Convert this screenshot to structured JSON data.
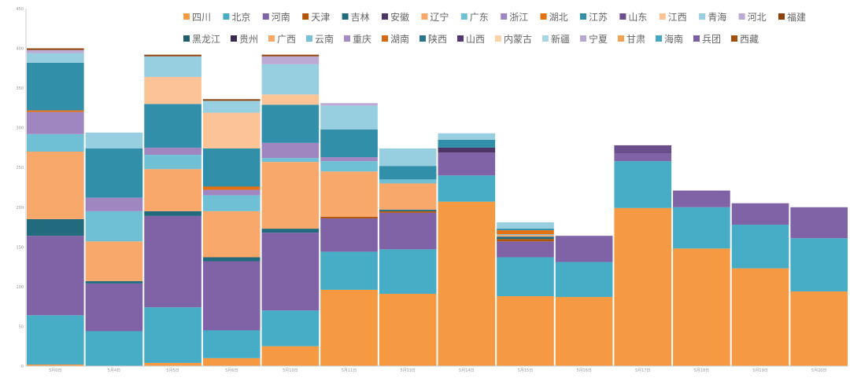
{
  "chart_data": {
    "type": "bar",
    "stacked": true,
    "categories": [
      "5月0日",
      "5月4日",
      "5月5日",
      "5月6日",
      "5月10日",
      "5月11日",
      "5月13日",
      "5月14日",
      "5月15日",
      "5月16日",
      "5月17日",
      "5月18日",
      "5月19日",
      "5月20日"
    ],
    "ylim": [
      0,
      450
    ],
    "yticks": [
      0,
      50,
      100,
      150,
      200,
      250,
      300,
      350,
      400,
      450
    ],
    "grid": false,
    "legend_position": "top-right",
    "series": [
      {
        "name": "四川",
        "color": "#F59A43",
        "values": [
          2,
          0,
          4,
          10,
          25,
          96,
          91,
          207,
          88,
          87,
          199,
          148,
          123,
          94
        ]
      },
      {
        "name": "北京",
        "color": "#47ADC6",
        "values": [
          62,
          44,
          70,
          35,
          45,
          48,
          56,
          33,
          49,
          44,
          59,
          52,
          55,
          67
        ]
      },
      {
        "name": "河南",
        "color": "#8063A6",
        "values": [
          100,
          60,
          115,
          87,
          98,
          42,
          46,
          29,
          20,
          33,
          10,
          21,
          27,
          39
        ]
      },
      {
        "name": "天津",
        "color": "#B25407",
        "values": [
          0,
          0,
          0,
          0,
          0,
          2,
          2,
          0,
          3,
          0,
          0,
          0,
          0,
          0
        ]
      },
      {
        "name": "吉林",
        "color": "#226A7E",
        "values": [
          21,
          3,
          6,
          5,
          5,
          0,
          2,
          0,
          3,
          0,
          0,
          0,
          0,
          0
        ]
      },
      {
        "name": "安徽",
        "color": "#4E3567",
        "values": [
          0,
          0,
          0,
          0,
          0,
          0,
          0,
          6,
          0,
          0,
          0,
          0,
          0,
          0
        ]
      },
      {
        "name": "辽宁",
        "color": "#F8A86A",
        "values": [
          85,
          50,
          53,
          58,
          84,
          57,
          33,
          0,
          2,
          0,
          0,
          0,
          0,
          0
        ]
      },
      {
        "name": "广东",
        "color": "#6FC0D4",
        "values": [
          22,
          38,
          18,
          20,
          5,
          13,
          5,
          0,
          1,
          0,
          0,
          0,
          0,
          0
        ]
      },
      {
        "name": "浙江",
        "color": "#A086C0",
        "values": [
          28,
          17,
          9,
          7,
          19,
          5,
          0,
          0,
          0,
          0,
          0,
          0,
          0,
          0
        ]
      },
      {
        "name": "湖北",
        "color": "#E5700F",
        "values": [
          2,
          0,
          0,
          4,
          0,
          0,
          0,
          0,
          5,
          0,
          0,
          0,
          0,
          0
        ]
      },
      {
        "name": "江苏",
        "color": "#318FAA",
        "values": [
          60,
          62,
          55,
          48,
          48,
          35,
          17,
          10,
          2,
          0,
          0,
          0,
          0,
          0
        ]
      },
      {
        "name": "山东",
        "color": "#6B4E8C",
        "values": [
          0,
          0,
          0,
          0,
          0,
          0,
          0,
          0,
          0,
          0,
          10,
          0,
          0,
          0
        ]
      },
      {
        "name": "江西",
        "color": "#FCC396",
        "values": [
          0,
          0,
          34,
          45,
          13,
          0,
          0,
          0,
          0,
          0,
          0,
          0,
          0,
          0
        ]
      },
      {
        "name": "青海",
        "color": "#97CFE0",
        "values": [
          12,
          20,
          26,
          15,
          38,
          30,
          22,
          8,
          8,
          0,
          0,
          0,
          0,
          0
        ]
      },
      {
        "name": "河北",
        "color": "#BCA9D4",
        "values": [
          4,
          0,
          0,
          0,
          10,
          3,
          0,
          0,
          0,
          0,
          0,
          0,
          0,
          0
        ]
      },
      {
        "name": "福建",
        "color": "#8E4008",
        "values": [
          2,
          0,
          2,
          2,
          2,
          0,
          0,
          0,
          0,
          0,
          0,
          0,
          0,
          0
        ]
      },
      {
        "name": "黑龙江",
        "color": "#1F5F6E",
        "values": [
          0,
          0,
          0,
          0,
          0,
          0,
          0,
          0,
          0,
          0,
          0,
          0,
          0,
          0
        ]
      },
      {
        "name": "贵州",
        "color": "#3B2A4F",
        "values": [
          0,
          0,
          0,
          0,
          0,
          0,
          0,
          0,
          0,
          0,
          0,
          0,
          0,
          0
        ]
      },
      {
        "name": "广西",
        "color": "#F9A867",
        "values": [
          0,
          0,
          0,
          0,
          0,
          0,
          0,
          0,
          0,
          0,
          0,
          0,
          0,
          0
        ]
      },
      {
        "name": "云南",
        "color": "#79C1D6",
        "values": [
          0,
          0,
          0,
          0,
          0,
          0,
          0,
          0,
          0,
          0,
          0,
          0,
          0,
          0
        ]
      },
      {
        "name": "重庆",
        "color": "#A68CC4",
        "values": [
          0,
          0,
          0,
          0,
          0,
          0,
          0,
          0,
          0,
          0,
          0,
          0,
          0,
          0
        ]
      },
      {
        "name": "湖南",
        "color": "#D56A12",
        "values": [
          0,
          0,
          0,
          0,
          0,
          0,
          0,
          0,
          0,
          0,
          0,
          0,
          0,
          0
        ]
      },
      {
        "name": "陕西",
        "color": "#2C7487",
        "values": [
          0,
          0,
          0,
          0,
          0,
          0,
          0,
          0,
          0,
          0,
          0,
          0,
          0,
          0
        ]
      },
      {
        "name": "山西",
        "color": "#53396E",
        "values": [
          0,
          0,
          0,
          0,
          0,
          0,
          0,
          0,
          0,
          0,
          0,
          0,
          0,
          0
        ]
      },
      {
        "name": "内蒙古",
        "color": "#FDD1AA",
        "values": [
          0,
          0,
          0,
          0,
          0,
          0,
          0,
          0,
          0,
          0,
          0,
          0,
          0,
          0
        ]
      },
      {
        "name": "新疆",
        "color": "#A9D6E5",
        "values": [
          0,
          0,
          0,
          0,
          0,
          0,
          0,
          0,
          0,
          0,
          0,
          0,
          0,
          0
        ]
      },
      {
        "name": "宁夏",
        "color": "#B9A6D2",
        "values": [
          0,
          0,
          0,
          0,
          0,
          0,
          0,
          0,
          0,
          0,
          0,
          0,
          0,
          0
        ]
      },
      {
        "name": "甘肃",
        "color": "#F5A04F",
        "values": [
          0,
          0,
          0,
          0,
          0,
          0,
          0,
          0,
          0,
          0,
          0,
          0,
          0,
          0
        ]
      },
      {
        "name": "海南",
        "color": "#44A8C2",
        "values": [
          0,
          0,
          0,
          0,
          0,
          0,
          0,
          0,
          0,
          0,
          0,
          0,
          0,
          0
        ]
      },
      {
        "name": "兵团",
        "color": "#7A5EA2",
        "values": [
          0,
          0,
          0,
          0,
          0,
          0,
          0,
          0,
          0,
          0,
          0,
          0,
          0,
          0
        ]
      },
      {
        "name": "西藏",
        "color": "#A14F0A",
        "values": [
          0,
          0,
          0,
          0,
          0,
          0,
          0,
          0,
          0,
          0,
          0,
          0,
          0,
          0
        ]
      }
    ]
  }
}
